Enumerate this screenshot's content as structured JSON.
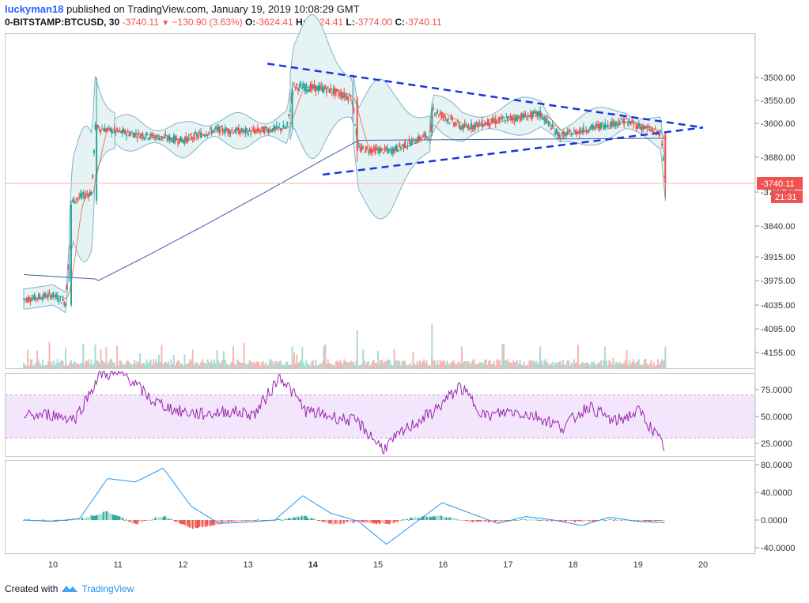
{
  "header": {
    "username": "luckyman18",
    "published_text": "published on TradingView.com, January 19, 2019 10:08:29 GMT",
    "symbol": "0-BITSTAMP:BTCUSD, 30",
    "last": "-3740.11",
    "change": "−130.90 (3.63%)",
    "open_label": "O:",
    "open": "-3624.41",
    "high_label": "H:",
    "high": "-3624.41",
    "low_label": "L:",
    "low": "-3774.00",
    "close_label": "C:",
    "close": "-3740.11"
  },
  "price_badge": {
    "value": "-3740.11",
    "countdown": "21:31"
  },
  "footer": {
    "created_with": "Created with",
    "brand": "TradingView"
  },
  "colors": {
    "up": "#26a69a",
    "down": "#ef5350",
    "trendline": "#1a35e0",
    "bb_fill": "#e6f3f5",
    "bb_line": "#7fb2c3",
    "ma_long": "#3f5ca8",
    "ma_short": "#d9836c",
    "rsi_line": "#9c27b0",
    "rsi_band": "#f3e5fc",
    "macd_line": "#2196f3",
    "signal_line": "#ff6d00",
    "hist_up": "#26a69a",
    "hist_up_light": "#a8dcd5",
    "hist_down": "#ef5350",
    "hist_down_light": "#f5b7b5"
  },
  "chart_data": [
    {
      "type": "candlestick",
      "symbol": "BTCUSD",
      "timeframe": "30",
      "xlabel": "",
      "ylabel": "",
      "x_ticks": [
        "10",
        "11",
        "12",
        "13",
        "14",
        "15",
        "16",
        "17",
        "18",
        "19",
        "20"
      ],
      "y_ticks": [
        "-3500.00",
        "-3550.00",
        "-3600.00",
        "-3680.00",
        "-3760.00",
        "-3840.00",
        "-3915.00",
        "-3975.00",
        "-4035.00",
        "-4095.00",
        "-4155.00"
      ],
      "price_path": [
        {
          "x": 9.6,
          "y": -4020
        },
        {
          "x": 10.0,
          "y": -4010
        },
        {
          "x": 10.2,
          "y": -4030
        },
        {
          "x": 10.3,
          "y": -3780
        },
        {
          "x": 10.6,
          "y": -3760
        },
        {
          "x": 10.65,
          "y": -3610
        },
        {
          "x": 11.0,
          "y": -3620
        },
        {
          "x": 11.5,
          "y": -3630
        },
        {
          "x": 12.0,
          "y": -3640
        },
        {
          "x": 12.5,
          "y": -3615
        },
        {
          "x": 13.0,
          "y": -3620
        },
        {
          "x": 13.6,
          "y": -3610
        },
        {
          "x": 13.7,
          "y": -3520
        },
        {
          "x": 14.2,
          "y": -3525
        },
        {
          "x": 14.6,
          "y": -3545
        },
        {
          "x": 14.7,
          "y": -3660
        },
        {
          "x": 15.2,
          "y": -3665
        },
        {
          "x": 15.8,
          "y": -3625
        },
        {
          "x": 15.85,
          "y": -3570
        },
        {
          "x": 16.3,
          "y": -3610
        },
        {
          "x": 17.0,
          "y": -3590
        },
        {
          "x": 17.5,
          "y": -3580
        },
        {
          "x": 17.8,
          "y": -3630
        },
        {
          "x": 18.3,
          "y": -3610
        },
        {
          "x": 18.8,
          "y": -3595
        },
        {
          "x": 19.35,
          "y": -3624
        },
        {
          "x": 19.42,
          "y": -3740
        }
      ],
      "trendlines": [
        {
          "name": "upper",
          "from": {
            "x": 13.3,
            "y": -3470
          },
          "to": {
            "x": 20.0,
            "y": -3610
          }
        },
        {
          "name": "lower",
          "from": {
            "x": 14.15,
            "y": -3720
          },
          "to": {
            "x": 20.0,
            "y": -3610
          }
        }
      ],
      "last_price": -3740.11
    },
    {
      "type": "line",
      "name": "RSI",
      "y_ticks": [
        "75.0000",
        "50.0000",
        "25.0000"
      ],
      "band": [
        30,
        70
      ],
      "values_approx": [
        50,
        52,
        48,
        90,
        88,
        65,
        55,
        52,
        55,
        52,
        88,
        55,
        50,
        45,
        20,
        40,
        55,
        78,
        50,
        55,
        50,
        40,
        60,
        45,
        55,
        20
      ]
    },
    {
      "type": "line",
      "name": "MACD",
      "y_ticks": [
        "80.0000",
        "40.0000",
        "0.0000",
        "-40.0000"
      ],
      "macd_approx": [
        0,
        -2,
        2,
        60,
        55,
        75,
        20,
        -5,
        -3,
        0,
        35,
        10,
        -2,
        -35,
        -5,
        25,
        10,
        -5,
        5,
        0,
        -8,
        4,
        -2,
        -4
      ],
      "signal_approx": [
        0,
        -1,
        1,
        50,
        60,
        70,
        30,
        0,
        -3,
        0,
        30,
        15,
        0,
        -30,
        -8,
        20,
        12,
        -3,
        4,
        1,
        -6,
        3,
        -1,
        -3
      ]
    }
  ]
}
